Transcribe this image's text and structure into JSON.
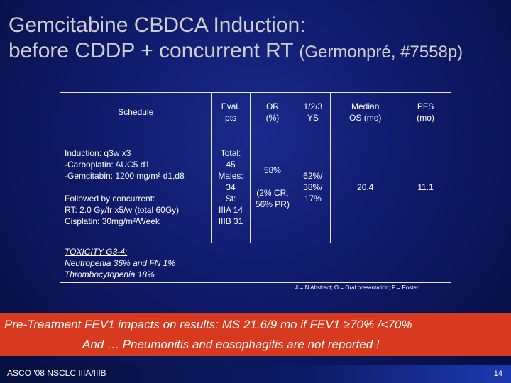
{
  "title": {
    "line1": "Gemcitabine CBDCA Induction:",
    "line2_main": "before CDDP + concurrent RT",
    "line2_ref": "(Germonpré, #7558p)"
  },
  "table": {
    "headers": {
      "schedule": "Schedule",
      "eval_1": "Eval.",
      "eval_2": "pts",
      "or_1": "OR",
      "or_2": "(%)",
      "ys_1": "1/2/3",
      "ys_2": "YS",
      "os_1": "Median",
      "os_2": "OS (mo)",
      "pfs_1": "PFS",
      "pfs_2": "(mo)"
    },
    "schedule": {
      "induction_label": "Induction:",
      "induction_value": "q3w x3",
      "carboplatin": "-Carboplatin: AUC5 d1",
      "gemcitabin": "-Gemcitabin: 1200 mg/m² d1,d8",
      "followed_label": "Followed by concurrent:",
      "rt": "RT: 2.0 Gy/fr x5/w (total 60Gy)",
      "cisplatin": "Cisplatin: 30mg/m²/Week"
    },
    "eval_pts": [
      "Total:",
      "45",
      "Males:",
      "34",
      "St:",
      "IIIA 14",
      "IIIB 31"
    ],
    "or": {
      "value": "58%",
      "detail_1": "(2% CR,",
      "detail_2": "56% PR)"
    },
    "ys": [
      "62%/",
      "38%/",
      "17%"
    ],
    "median_os": "20.4",
    "pfs": "11.1",
    "toxicity": {
      "heading": "TOXICITY G3-4:",
      "line1": "Neutropenia 36% and FN 1%",
      "line2": "Thrombocytopenia 18%"
    }
  },
  "footnote": "# = N Abstract; O = Oral presentation; P = Poster;",
  "highlight": {
    "line1": "Pre-Treatment FEV1 impacts on results:  MS 21.6/9 mo if FEV1 ≥70% /<70%",
    "line2": "And … Pneumonitis and eosophagitis are not reported !"
  },
  "footer": {
    "conference": "ASCO '08 NSCLC IIIA/IIIB",
    "page_number": "14"
  },
  "colors": {
    "background": "#0f1a6a",
    "highlight_band": "#d73a1e",
    "title_text": "#cfcfcf"
  }
}
